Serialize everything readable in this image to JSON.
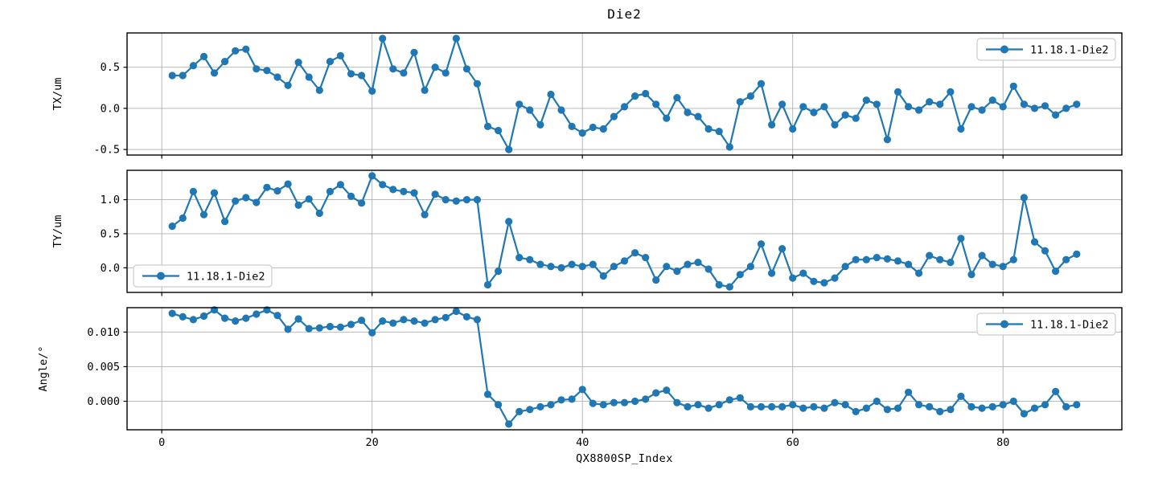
{
  "title": "Die2",
  "xlabel": "QX8800SP_Index",
  "series_name": "11.18.1-Die2",
  "colors": {
    "line": "#1f77b4",
    "grid": "#b0b0b0",
    "spine": "#000000",
    "legend_border": "#cccccc",
    "text": "#000000",
    "background": "#ffffff"
  },
  "chart_data": [
    {
      "type": "line",
      "id": "tx",
      "title": "Die2",
      "ylabel": "TX/um",
      "x_start": 1,
      "x_step": 1,
      "xlim": [
        -3.3,
        91.3
      ],
      "ylim": [
        -0.5675,
        0.9175
      ],
      "xticks": [
        0,
        20,
        40,
        60,
        80
      ],
      "xtick_labels": [
        "0",
        "20",
        "40",
        "60",
        "80"
      ],
      "show_xtick_labels": false,
      "yticks": [
        -0.5,
        0.0,
        0.5
      ],
      "ytick_labels": [
        "-0.5",
        "0.0",
        "0.5"
      ],
      "grid": true,
      "legend_position": "upper right",
      "series": [
        {
          "name": "11.18.1-Die2",
          "marker": "o",
          "values": [
            0.4,
            0.4,
            0.52,
            0.63,
            0.43,
            0.57,
            0.7,
            0.72,
            0.48,
            0.46,
            0.38,
            0.28,
            0.56,
            0.38,
            0.22,
            0.57,
            0.64,
            0.42,
            0.4,
            0.21,
            0.85,
            0.48,
            0.43,
            0.68,
            0.22,
            0.5,
            0.43,
            0.85,
            0.48,
            0.3,
            -0.22,
            -0.27,
            -0.5,
            0.05,
            -0.02,
            -0.2,
            0.17,
            -0.02,
            -0.22,
            -0.3,
            -0.23,
            -0.25,
            -0.1,
            0.02,
            0.15,
            0.18,
            0.05,
            -0.12,
            0.13,
            -0.05,
            -0.1,
            -0.25,
            -0.28,
            -0.47,
            0.08,
            0.15,
            0.3,
            -0.2,
            0.05,
            -0.25,
            0.02,
            -0.05,
            0.02,
            -0.2,
            -0.08,
            -0.12,
            0.1,
            0.05,
            -0.38,
            0.2,
            0.02,
            -0.02,
            0.08,
            0.05,
            0.2,
            -0.25,
            0.02,
            -0.02,
            0.1,
            0.02,
            0.27,
            0.05,
            0.0,
            0.03,
            -0.08,
            0.0,
            0.05
          ]
        }
      ]
    },
    {
      "type": "line",
      "id": "ty",
      "ylabel": "TY/um",
      "x_start": 1,
      "x_step": 1,
      "xlim": [
        -3.3,
        91.3
      ],
      "ylim": [
        -0.3615,
        1.4315
      ],
      "xticks": [
        0,
        20,
        40,
        60,
        80
      ],
      "xtick_labels": [
        "0",
        "20",
        "40",
        "60",
        "80"
      ],
      "show_xtick_labels": false,
      "yticks": [
        0.0,
        0.5,
        1.0
      ],
      "ytick_labels": [
        "0.0",
        "0.5",
        "1.0"
      ],
      "grid": true,
      "legend_position": "lower left",
      "series": [
        {
          "name": "11.18.1-Die2",
          "marker": "o",
          "values": [
            0.61,
            0.73,
            1.12,
            0.78,
            1.1,
            0.68,
            0.98,
            1.03,
            0.96,
            1.18,
            1.13,
            1.23,
            0.92,
            1.01,
            0.8,
            1.12,
            1.22,
            1.05,
            0.95,
            1.35,
            1.22,
            1.15,
            1.12,
            1.1,
            0.78,
            1.08,
            1.0,
            0.98,
            1.0,
            1.0,
            -0.25,
            -0.05,
            0.68,
            0.15,
            0.12,
            0.05,
            0.02,
            0.0,
            0.05,
            0.02,
            0.05,
            -0.12,
            0.02,
            0.1,
            0.22,
            0.15,
            -0.18,
            0.02,
            -0.05,
            0.05,
            0.08,
            -0.02,
            -0.25,
            -0.28,
            -0.1,
            0.02,
            0.35,
            -0.08,
            0.28,
            -0.15,
            -0.08,
            -0.2,
            -0.22,
            -0.15,
            0.02,
            0.12,
            0.12,
            0.15,
            0.13,
            0.1,
            0.05,
            -0.08,
            0.18,
            0.12,
            0.08,
            0.43,
            -0.1,
            0.18,
            0.05,
            0.02,
            0.12,
            1.03,
            0.38,
            0.25,
            -0.05,
            0.12,
            0.2
          ]
        }
      ]
    },
    {
      "type": "line",
      "id": "angle",
      "ylabel": "Angle/°",
      "xlabel": "QX8800SP_Index",
      "x_start": 1,
      "x_step": 1,
      "xlim": [
        -3.3,
        91.3
      ],
      "ylim": [
        -0.004125,
        0.013525
      ],
      "xticks": [
        0,
        20,
        40,
        60,
        80
      ],
      "xtick_labels": [
        "0",
        "20",
        "40",
        "60",
        "80"
      ],
      "show_xtick_labels": true,
      "yticks": [
        0.0,
        0.005,
        0.01
      ],
      "ytick_labels": [
        "0.000",
        "0.005",
        "0.010"
      ],
      "grid": true,
      "legend_position": "upper right",
      "series": [
        {
          "name": "11.18.1-Die2",
          "marker": "o",
          "values": [
            0.0127,
            0.0122,
            0.0118,
            0.0123,
            0.0132,
            0.012,
            0.0116,
            0.012,
            0.0126,
            0.0132,
            0.0124,
            0.0104,
            0.0119,
            0.0105,
            0.0106,
            0.0108,
            0.0107,
            0.0111,
            0.0117,
            0.0099,
            0.0116,
            0.0113,
            0.0118,
            0.0116,
            0.0113,
            0.0118,
            0.0121,
            0.013,
            0.0122,
            0.0118,
            0.001,
            -0.0005,
            -0.0033,
            -0.0015,
            -0.0012,
            -0.0008,
            -0.0005,
            0.0002,
            0.0003,
            0.0017,
            -0.0003,
            -0.0005,
            -0.0002,
            -0.0002,
            0.0,
            0.0003,
            0.0012,
            0.0016,
            -0.0002,
            -0.0008,
            -0.0005,
            -0.001,
            -0.0005,
            0.0002,
            0.0005,
            -0.0008,
            -0.0008,
            -0.0008,
            -0.0008,
            -0.0005,
            -0.001,
            -0.0008,
            -0.001,
            -0.0002,
            -0.0005,
            -0.0015,
            -0.001,
            0.0,
            -0.0012,
            -0.001,
            0.0013,
            -0.0005,
            -0.0008,
            -0.0015,
            -0.0012,
            0.0007,
            -0.0008,
            -0.001,
            -0.0008,
            -0.0005,
            0.0,
            -0.0018,
            -0.001,
            -0.0005,
            0.0014,
            -0.0008,
            -0.0005
          ]
        }
      ]
    }
  ]
}
